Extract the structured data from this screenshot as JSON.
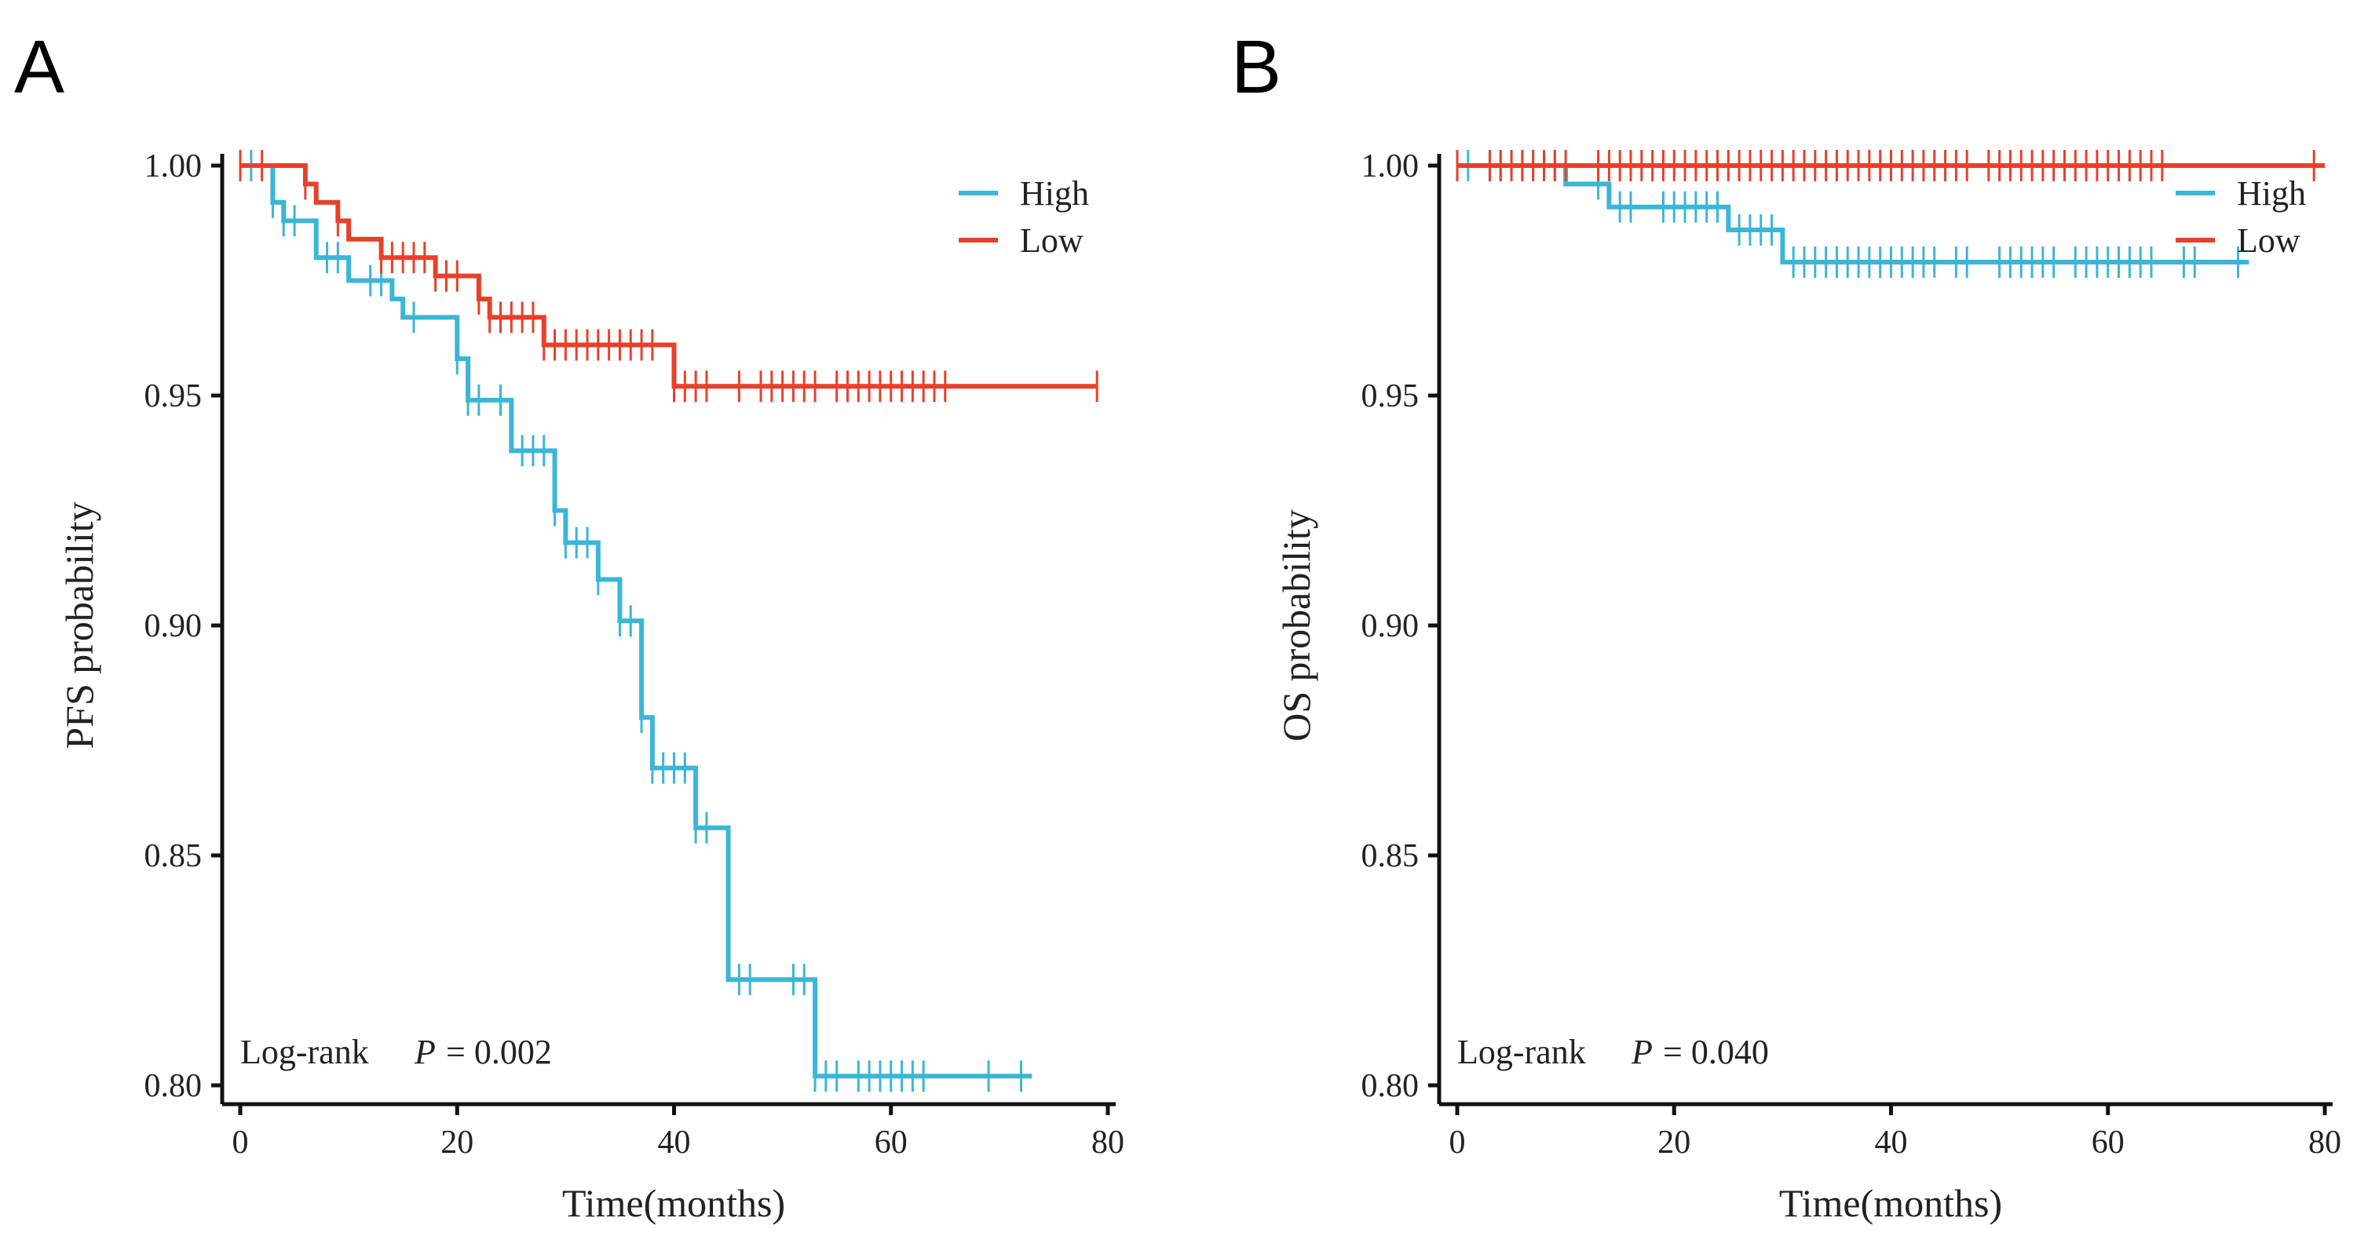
{
  "chart_data": [
    {
      "type": "line",
      "panel": "A",
      "title": "",
      "xlabel": "Time(months)",
      "ylabel": "PFS probability",
      "xlim": [
        0,
        80
      ],
      "ylim": [
        0.8,
        1.0
      ],
      "xticks": [
        "0",
        "20",
        "40",
        "60",
        "80"
      ],
      "yticks": [
        "0.80",
        "0.85",
        "0.90",
        "0.95",
        "1.00"
      ],
      "legend_position": "top-right",
      "annotation": {
        "test": "Log-rank",
        "p_label": "P",
        "p_value": "= 0.002"
      },
      "series": [
        {
          "name": "High",
          "color": "#3BB6D6",
          "end": 73,
          "steps": [
            [
              0,
              1.0
            ],
            [
              3,
              0.992
            ],
            [
              4,
              0.988
            ],
            [
              7,
              0.98
            ],
            [
              10,
              0.975
            ],
            [
              14,
              0.971
            ],
            [
              15,
              0.967
            ],
            [
              20,
              0.958
            ],
            [
              21,
              0.949
            ],
            [
              25,
              0.938
            ],
            [
              29,
              0.925
            ],
            [
              30,
              0.918
            ],
            [
              33,
              0.91
            ],
            [
              35,
              0.901
            ],
            [
              37,
              0.88
            ],
            [
              38,
              0.869
            ],
            [
              42,
              0.856
            ],
            [
              45,
              0.823
            ],
            [
              53,
              0.802
            ]
          ],
          "censored": [
            1,
            3,
            4,
            5,
            8,
            9,
            12,
            13,
            16,
            20,
            21,
            22,
            24,
            26,
            27,
            28,
            29,
            30,
            31,
            32,
            33,
            35,
            36,
            37,
            38,
            39,
            40,
            41,
            42,
            43,
            46,
            47,
            51,
            52,
            53,
            54,
            55,
            57,
            58,
            59,
            60,
            61,
            62,
            63,
            69,
            72
          ]
        },
        {
          "name": "Low",
          "color": "#E8402A",
          "end": 79,
          "steps": [
            [
              0,
              1.0
            ],
            [
              6,
              0.996
            ],
            [
              7,
              0.992
            ],
            [
              9,
              0.988
            ],
            [
              10,
              0.984
            ],
            [
              13,
              0.98
            ],
            [
              18,
              0.976
            ],
            [
              22,
              0.971
            ],
            [
              23,
              0.967
            ],
            [
              28,
              0.961
            ],
            [
              40,
              0.952
            ]
          ],
          "censored": [
            0,
            2,
            6,
            9,
            13,
            14,
            15,
            16,
            17,
            18,
            19,
            20,
            22,
            23,
            24,
            25,
            26,
            27,
            28,
            29,
            30,
            31,
            32,
            33,
            34,
            35,
            36,
            37,
            38,
            40,
            41,
            42,
            43,
            46,
            48,
            49,
            50,
            51,
            52,
            53,
            55,
            56,
            57,
            58,
            59,
            60,
            61,
            62,
            63,
            64,
            65,
            79
          ]
        }
      ]
    },
    {
      "type": "line",
      "panel": "B",
      "title": "",
      "xlabel": "Time(months)",
      "ylabel": "OS probability",
      "xlim": [
        0,
        80
      ],
      "ylim": [
        0.8,
        1.0
      ],
      "xticks": [
        "0",
        "20",
        "40",
        "60",
        "80"
      ],
      "yticks": [
        "0.80",
        "0.85",
        "0.90",
        "0.95",
        "1.00"
      ],
      "legend_position": "top-right",
      "annotation": {
        "test": "Log-rank",
        "p_label": "P",
        "p_value": "= 0.040"
      },
      "series": [
        {
          "name": "High",
          "color": "#3BB6D6",
          "end": 73,
          "steps": [
            [
              0,
              1.0
            ],
            [
              10,
              0.996
            ],
            [
              14,
              0.991
            ],
            [
              25,
              0.986
            ],
            [
              30,
              0.979
            ]
          ],
          "censored": [
            1,
            3,
            4,
            5,
            6,
            7,
            8,
            9,
            13,
            15,
            16,
            19,
            20,
            21,
            22,
            23,
            24,
            26,
            27,
            28,
            29,
            31,
            32,
            33,
            34,
            35,
            36,
            37,
            38,
            39,
            40,
            41,
            42,
            43,
            44,
            46,
            47,
            50,
            51,
            52,
            53,
            54,
            55,
            57,
            58,
            59,
            60,
            61,
            62,
            63,
            64,
            67,
            68,
            72
          ]
        },
        {
          "name": "Low",
          "color": "#E8402A",
          "end": 80,
          "steps": [
            [
              0,
              1.0
            ]
          ],
          "censored": [
            0,
            3,
            4,
            5,
            6,
            7,
            8,
            9,
            10,
            13,
            14,
            15,
            16,
            17,
            18,
            19,
            20,
            21,
            22,
            23,
            24,
            25,
            26,
            27,
            28,
            29,
            30,
            31,
            32,
            33,
            34,
            35,
            36,
            37,
            38,
            39,
            40,
            41,
            42,
            43,
            44,
            45,
            46,
            47,
            49,
            50,
            51,
            52,
            53,
            54,
            55,
            56,
            57,
            58,
            59,
            60,
            61,
            62,
            63,
            64,
            65,
            79
          ]
        }
      ]
    }
  ]
}
